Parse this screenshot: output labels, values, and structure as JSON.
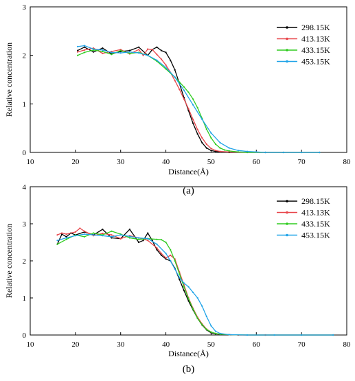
{
  "figure": {
    "panel_labels": [
      "(a)",
      "(b)"
    ]
  },
  "chart_data": [
    {
      "type": "line",
      "panel": "(a)",
      "xlabel": "Distance(Å)",
      "ylabel": "Relative concentration",
      "xlim": [
        10,
        80
      ],
      "ylim": [
        0,
        3
      ],
      "xticks": [
        10,
        20,
        30,
        40,
        50,
        60,
        70,
        80
      ],
      "yticks": [
        0,
        1,
        2,
        3
      ],
      "grid": false,
      "legend_position": "top-right",
      "series": [
        {
          "name": "298.15K",
          "color": "#000000",
          "x": [
            20.5,
            22,
            24,
            26,
            28,
            30,
            32,
            34,
            36,
            37,
            38,
            39,
            40,
            41,
            42,
            43,
            44,
            45,
            46,
            47,
            48,
            49,
            50,
            51,
            52,
            54,
            58,
            62,
            66,
            70,
            74
          ],
          "y": [
            2.1,
            2.17,
            2.07,
            2.15,
            2.03,
            2.08,
            2.1,
            2.17,
            2.0,
            2.12,
            2.17,
            2.1,
            2.06,
            1.9,
            1.7,
            1.42,
            1.13,
            0.86,
            0.6,
            0.38,
            0.2,
            0.09,
            0.04,
            0.02,
            0.01,
            0,
            0,
            0,
            0,
            0,
            0
          ]
        },
        {
          "name": "413.13K",
          "color": "#e8454a",
          "x": [
            20.5,
            22,
            24,
            26,
            28,
            30,
            32,
            34,
            35,
            36,
            37,
            38,
            39,
            40,
            41,
            42,
            43,
            44,
            45,
            46,
            47,
            48,
            49,
            50,
            51,
            52,
            54,
            58,
            62,
            66,
            70,
            74
          ],
          "y": [
            2.07,
            2.11,
            2.15,
            2.04,
            2.08,
            2.12,
            2.03,
            2.12,
            2.0,
            2.13,
            2.12,
            2.02,
            1.92,
            1.8,
            1.65,
            1.48,
            1.3,
            1.1,
            0.9,
            0.68,
            0.47,
            0.3,
            0.17,
            0.08,
            0.04,
            0.02,
            0.01,
            0,
            0,
            0,
            0,
            0
          ]
        },
        {
          "name": "433.15K",
          "color": "#2ecc1f",
          "x": [
            20.5,
            22,
            24,
            26,
            28,
            30,
            32,
            34,
            36,
            38,
            40,
            42,
            43,
            44,
            45,
            46,
            47,
            48,
            49,
            50,
            51,
            52,
            53,
            54,
            56,
            58,
            62,
            66,
            70,
            74
          ],
          "y": [
            2.0,
            2.06,
            2.11,
            2.08,
            2.02,
            2.1,
            2.04,
            2.06,
            2.0,
            1.88,
            1.72,
            1.55,
            1.45,
            1.35,
            1.24,
            1.1,
            0.92,
            0.7,
            0.48,
            0.3,
            0.17,
            0.09,
            0.05,
            0.03,
            0.01,
            0,
            0,
            0,
            0,
            0
          ]
        },
        {
          "name": "453.15K",
          "color": "#1fa3e8",
          "x": [
            20.5,
            22,
            24,
            26,
            28,
            30,
            32,
            34,
            36,
            38,
            40,
            42,
            44,
            46,
            48,
            50,
            52,
            54,
            56,
            58,
            60,
            62,
            66,
            70,
            74
          ],
          "y": [
            2.18,
            2.2,
            2.13,
            2.11,
            2.06,
            2.05,
            2.07,
            2.05,
            2.0,
            1.9,
            1.75,
            1.55,
            1.28,
            0.98,
            0.68,
            0.4,
            0.2,
            0.09,
            0.04,
            0.02,
            0.01,
            0,
            0,
            0,
            0
          ]
        }
      ]
    },
    {
      "type": "line",
      "panel": "(b)",
      "xlabel": "Distance(Å)",
      "ylabel": "Relative concentration",
      "xlim": [
        10,
        80
      ],
      "ylim": [
        0,
        4
      ],
      "xticks": [
        10,
        20,
        30,
        40,
        50,
        60,
        70,
        80
      ],
      "yticks": [
        0,
        1,
        2,
        3,
        4
      ],
      "grid": false,
      "legend_position": "top-right",
      "series": [
        {
          "name": "298.15K",
          "color": "#000000",
          "x": [
            16,
            17,
            18,
            19,
            20,
            22,
            24,
            26,
            28,
            30,
            32,
            34,
            35,
            36,
            37,
            38,
            39,
            40,
            41,
            42,
            43,
            44,
            45,
            46,
            47,
            48,
            49,
            50,
            51,
            52,
            56,
            62,
            70,
            77
          ],
          "y": [
            2.45,
            2.72,
            2.65,
            2.75,
            2.7,
            2.78,
            2.7,
            2.85,
            2.62,
            2.6,
            2.85,
            2.5,
            2.55,
            2.75,
            2.55,
            2.3,
            2.15,
            2.05,
            2.0,
            1.8,
            1.5,
            1.2,
            0.92,
            0.68,
            0.45,
            0.27,
            0.14,
            0.06,
            0.03,
            0.02,
            0,
            0,
            0,
            0
          ]
        },
        {
          "name": "413.13K",
          "color": "#e8454a",
          "x": [
            16,
            17,
            18,
            20,
            21,
            22,
            24,
            26,
            28,
            30,
            32,
            34,
            36,
            38,
            39,
            40,
            41,
            42,
            43,
            44,
            45,
            46,
            47,
            48,
            49,
            50,
            51,
            52,
            56,
            62,
            70,
            77
          ],
          "y": [
            2.7,
            2.75,
            2.72,
            2.78,
            2.88,
            2.8,
            2.68,
            2.74,
            2.7,
            2.6,
            2.68,
            2.62,
            2.55,
            2.35,
            2.2,
            2.08,
            2.15,
            2.05,
            1.7,
            1.35,
            1.0,
            0.72,
            0.48,
            0.3,
            0.16,
            0.08,
            0.04,
            0.02,
            0,
            0,
            0,
            0
          ]
        },
        {
          "name": "433.15K",
          "color": "#2ecc1f",
          "x": [
            16,
            18,
            20,
            22,
            24,
            26,
            28,
            30,
            32,
            34,
            36,
            38,
            39,
            40,
            41,
            42,
            43,
            44,
            45,
            46,
            47,
            48,
            49,
            50,
            51,
            52,
            54,
            58,
            64,
            70,
            77
          ],
          "y": [
            2.45,
            2.58,
            2.7,
            2.65,
            2.75,
            2.7,
            2.8,
            2.72,
            2.62,
            2.58,
            2.6,
            2.58,
            2.57,
            2.5,
            2.3,
            2.0,
            1.65,
            1.3,
            0.98,
            0.7,
            0.45,
            0.28,
            0.15,
            0.08,
            0.04,
            0.02,
            0.01,
            0,
            0,
            0,
            0
          ]
        },
        {
          "name": "453.15K",
          "color": "#1fa3e8",
          "x": [
            16,
            18,
            20,
            22,
            24,
            26,
            28,
            30,
            32,
            34,
            36,
            38,
            40,
            41,
            42,
            43,
            44,
            45,
            46,
            47,
            48,
            49,
            50,
            51,
            52,
            54,
            58,
            64,
            70,
            77
          ],
          "y": [
            2.55,
            2.62,
            2.68,
            2.72,
            2.7,
            2.68,
            2.65,
            2.7,
            2.66,
            2.62,
            2.6,
            2.45,
            2.2,
            2.0,
            1.78,
            1.55,
            1.4,
            1.3,
            1.15,
            1.0,
            0.78,
            0.5,
            0.25,
            0.1,
            0.04,
            0.01,
            0,
            0,
            0,
            0
          ]
        }
      ]
    }
  ]
}
